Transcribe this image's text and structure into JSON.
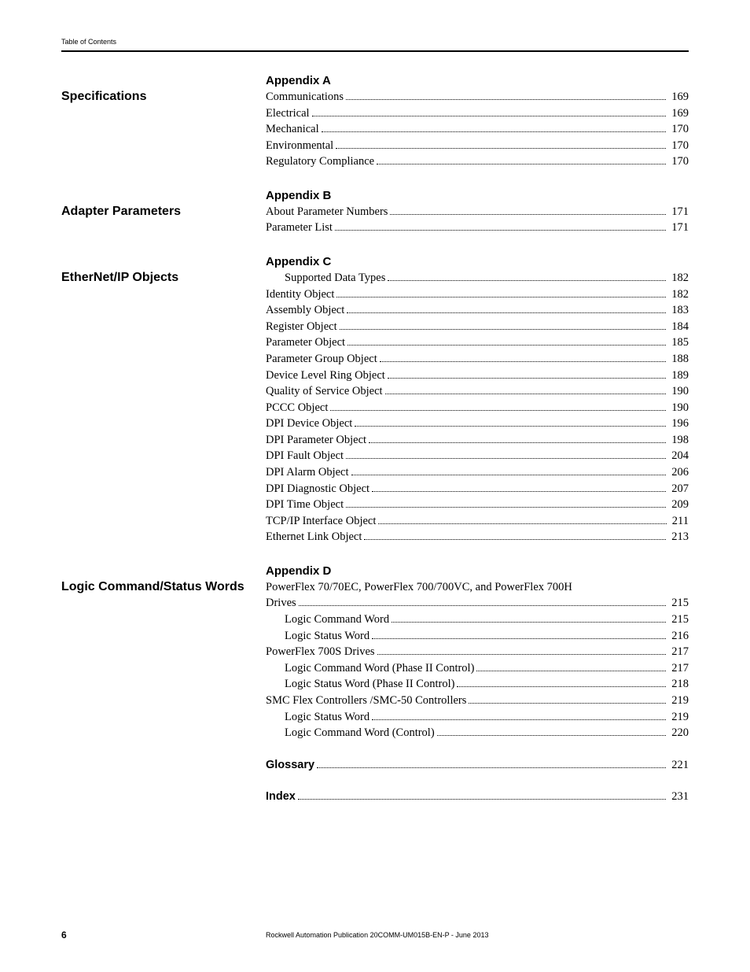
{
  "header": {
    "label": "Table of Contents"
  },
  "sections": [
    {
      "title": "Specifications",
      "heading": "Appendix A",
      "entries": [
        {
          "label": "Communications",
          "page": "169",
          "indent": 0
        },
        {
          "label": "Electrical",
          "page": "169",
          "indent": 0
        },
        {
          "label": "Mechanical",
          "page": "170",
          "indent": 0
        },
        {
          "label": "Environmental",
          "page": "170",
          "indent": 0
        },
        {
          "label": "Regulatory Compliance",
          "page": "170",
          "indent": 0
        }
      ]
    },
    {
      "title": "Adapter Parameters",
      "heading": "Appendix B",
      "entries": [
        {
          "label": "About Parameter Numbers",
          "page": "171",
          "indent": 0
        },
        {
          "label": "Parameter List",
          "page": "171",
          "indent": 0
        }
      ]
    },
    {
      "title": "EtherNet/IP Objects",
      "heading": "Appendix C",
      "entries": [
        {
          "label": "Supported Data Types",
          "page": "182",
          "indent": 1
        },
        {
          "label": "Identity Object",
          "page": "182",
          "indent": 0
        },
        {
          "label": "Assembly Object",
          "page": "183",
          "indent": 0
        },
        {
          "label": "Register Object",
          "page": "184",
          "indent": 0
        },
        {
          "label": "Parameter Object",
          "page": "185",
          "indent": 0
        },
        {
          "label": "Parameter Group Object",
          "page": "188",
          "indent": 0
        },
        {
          "label": "Device Level Ring Object",
          "page": "189",
          "indent": 0
        },
        {
          "label": "Quality of Service Object",
          "page": "190",
          "indent": 0
        },
        {
          "label": "PCCC Object",
          "page": "190",
          "indent": 0
        },
        {
          "label": "DPI Device Object",
          "page": "196",
          "indent": 0
        },
        {
          "label": "DPI Parameter Object",
          "page": "198",
          "indent": 0
        },
        {
          "label": "DPI Fault Object",
          "page": "204",
          "indent": 0
        },
        {
          "label": "DPI Alarm Object",
          "page": "206",
          "indent": 0
        },
        {
          "label": "DPI Diagnostic Object",
          "page": "207",
          "indent": 0
        },
        {
          "label": "DPI Time Object",
          "page": "209",
          "indent": 0
        },
        {
          "label": "TCP/IP Interface Object",
          "page": "211",
          "indent": 0
        },
        {
          "label": "Ethernet Link Object",
          "page": "213",
          "indent": 0
        }
      ]
    },
    {
      "title": "Logic Command/Status Words",
      "heading": "Appendix D",
      "entries": [
        {
          "label": "PowerFlex 70/70EC, PowerFlex 700/700VC, and PowerFlex 700H",
          "continuation": true,
          "indent": 0
        },
        {
          "label": "Drives",
          "page": "215",
          "indent": 0
        },
        {
          "label": "Logic Command Word",
          "page": "215",
          "indent": 1
        },
        {
          "label": "Logic Status Word",
          "page": "216",
          "indent": 1
        },
        {
          "label": "PowerFlex 700S Drives",
          "page": "217",
          "indent": 0
        },
        {
          "label": "Logic Command Word (Phase II Control)",
          "page": "217",
          "indent": 1
        },
        {
          "label": "Logic Status Word (Phase II Control)",
          "page": "218",
          "indent": 1
        },
        {
          "label": "SMC Flex Controllers /SMC-50 Controllers",
          "page": "219",
          "indent": 0
        },
        {
          "label": "Logic Status Word",
          "page": "219",
          "indent": 1
        },
        {
          "label": "Logic Command Word (Control)",
          "page": "220",
          "indent": 1
        }
      ],
      "post_entries": [
        {
          "label": "Glossary",
          "page": "221",
          "bold": true
        },
        {
          "label": "Index",
          "page": "231",
          "bold": true
        }
      ]
    }
  ],
  "footer": {
    "page": "6",
    "publication": "Rockwell Automation Publication 20COMM-UM015B-EN-P - June 2013"
  }
}
